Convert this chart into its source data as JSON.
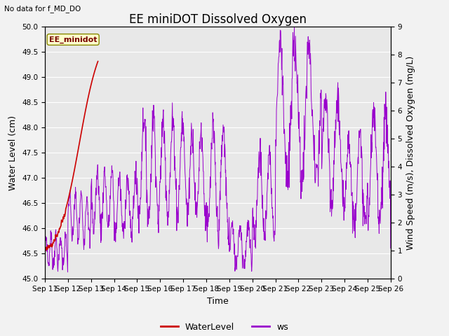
{
  "title": "EE miniDOT Dissolved Oxygen",
  "top_left_text": "No data for f_MD_DO",
  "annotation_text": "EE_minidot",
  "xlabel": "Time",
  "ylabel_left": "Water Level (cm)",
  "ylabel_right": "Wind Speed (m/s), Dissolved Oxygen (mg/L)",
  "left_ylim": [
    45.0,
    50.0
  ],
  "right_ylim": [
    0.0,
    9.0
  ],
  "left_yticks": [
    45.0,
    45.5,
    46.0,
    46.5,
    47.0,
    47.5,
    48.0,
    48.5,
    49.0,
    49.5,
    50.0
  ],
  "right_yticks": [
    0.0,
    1.0,
    2.0,
    3.0,
    4.0,
    5.0,
    6.0,
    7.0,
    8.0,
    9.0
  ],
  "xtick_labels": [
    "Sep 11",
    "Sep 12",
    "Sep 13",
    "Sep 14",
    "Sep 15",
    "Sep 16",
    "Sep 17",
    "Sep 18",
    "Sep 19",
    "Sep 20",
    "Sep 21",
    "Sep 22",
    "Sep 23",
    "Sep 24",
    "Sep 25",
    "Sep 26"
  ],
  "background_color": "#e8e8e8",
  "fig_background": "#f2f2f2",
  "grid_color": "#ffffff",
  "waterlevel_color": "#cc0000",
  "ws_color": "#9900cc",
  "legend_waterlevel": "WaterLevel",
  "legend_ws": "ws",
  "title_fontsize": 12,
  "axis_label_fontsize": 9,
  "tick_fontsize": 7.5
}
